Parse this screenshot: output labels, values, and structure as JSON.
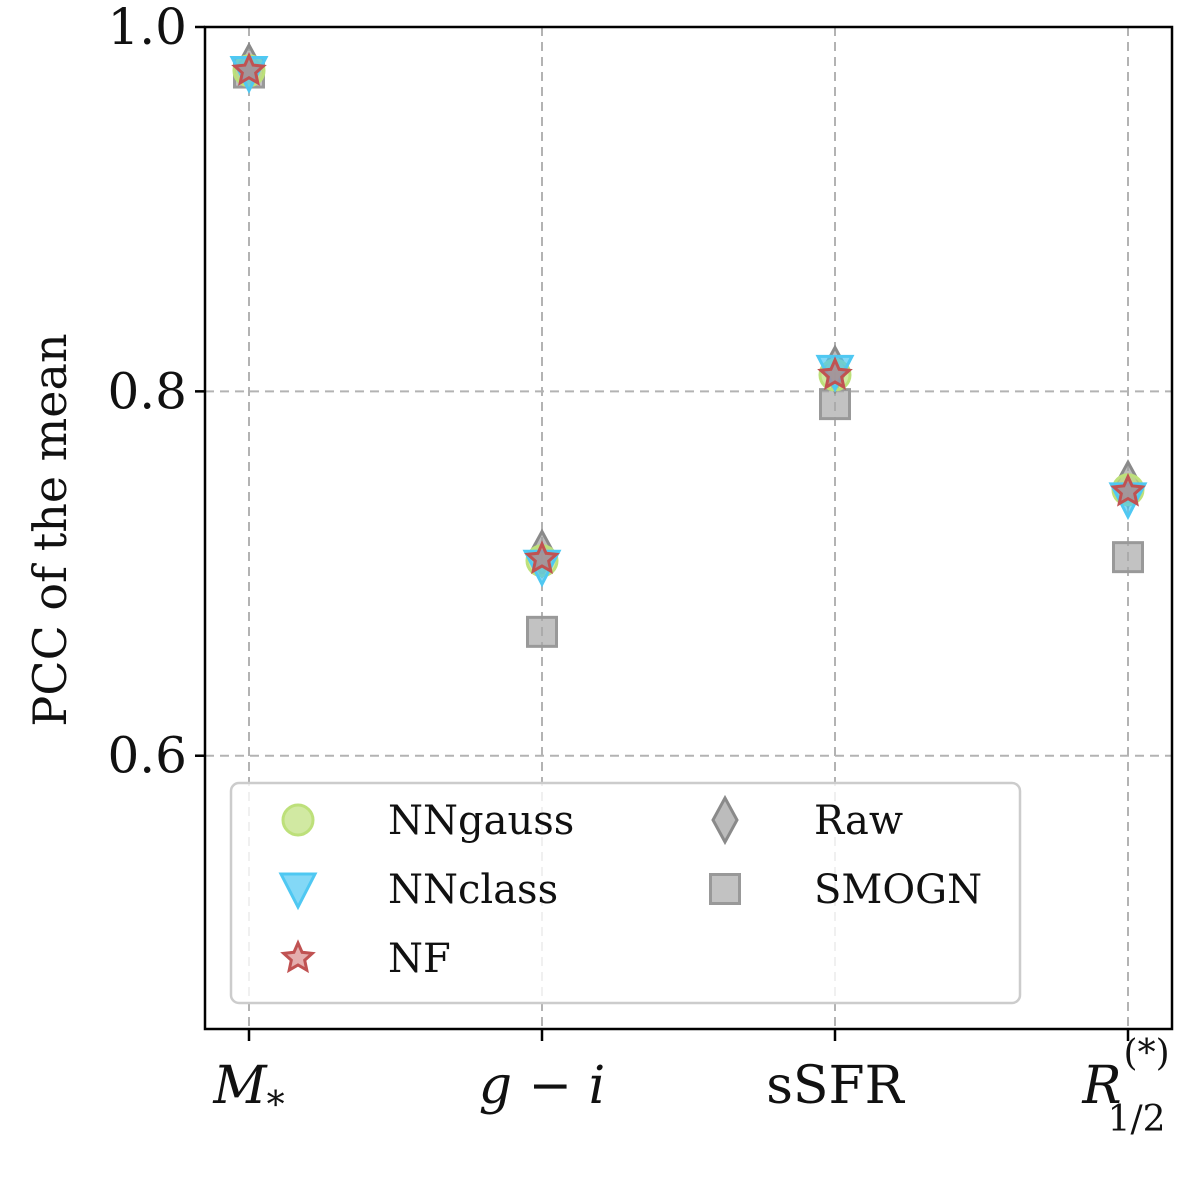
{
  "chart_data": {
    "type": "scatter",
    "title": "",
    "xlabel": "",
    "ylabel": "PCC of the mean",
    "ylim": [
      0.45,
      1.0
    ],
    "yticks": [
      "0.6",
      "0.8",
      "1.0"
    ],
    "grid": true,
    "legend_position": "lower-left",
    "categories": [
      {
        "label": "M",
        "sub": "*",
        "sup": ""
      },
      {
        "label": "g − i",
        "sub": "",
        "sup": ""
      },
      {
        "label": "sSFR",
        "sub": "",
        "sup": ""
      },
      {
        "label": "R",
        "sub": "1/2",
        "sup": "(*)"
      }
    ],
    "series": [
      {
        "name": "Raw",
        "marker": "diamond",
        "color": "#a0a0a0",
        "values": [
          0.978,
          0.711,
          0.812,
          0.749
        ]
      },
      {
        "name": "NNgauss",
        "marker": "circle",
        "color": "#bde07a",
        "values": [
          0.976,
          0.707,
          0.809,
          0.746
        ]
      },
      {
        "name": "NNclass",
        "marker": "triangle-down",
        "color": "#4fc8f2",
        "values": [
          0.975,
          0.704,
          0.811,
          0.741
        ]
      },
      {
        "name": "NF",
        "marker": "star",
        "color": "#cd6b6b",
        "values": [
          0.976,
          0.708,
          0.809,
          0.745
        ]
      },
      {
        "name": "SMOGN",
        "marker": "square",
        "color": "#a8a8a8",
        "values": [
          0.975,
          0.668,
          0.793,
          0.709
        ]
      }
    ],
    "legend_order": [
      [
        "NNgauss",
        "Raw"
      ],
      [
        "NNclass",
        "SMOGN"
      ],
      [
        "NF",
        null
      ]
    ]
  }
}
